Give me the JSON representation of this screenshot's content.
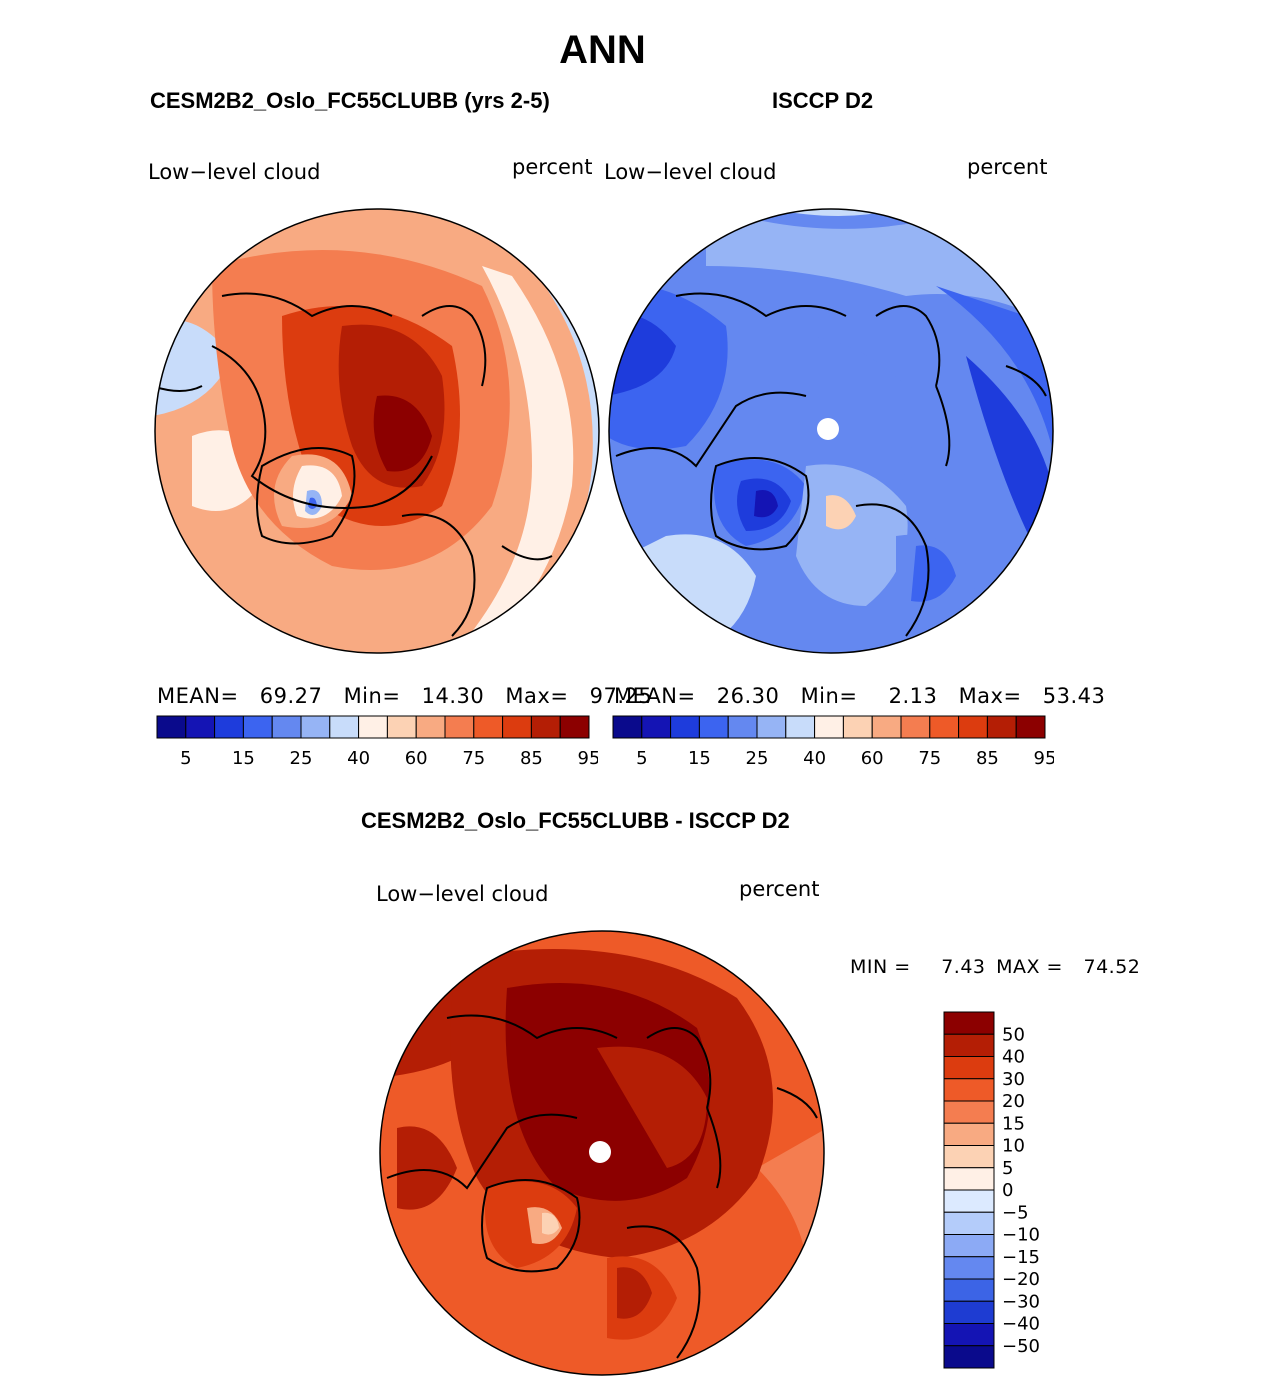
{
  "title": "ANN",
  "panel1": {
    "case_title": "CESM2B2_Oslo_FC55CLUBB (yrs 2-5)",
    "left_label": "Low−level cloud",
    "units": "percent",
    "stats": {
      "mean_label": "MEAN=",
      "mean": "69.27",
      "min_label": "Min=",
      "min": "14.30",
      "max_label": "Max=",
      "max": "97.25"
    },
    "colorbar_labels": [
      "5",
      "15",
      "25",
      "40",
      "60",
      "75",
      "85",
      "95"
    ]
  },
  "panel2": {
    "case_title": "ISCCP D2",
    "left_label": "Low−level cloud",
    "units": "percent",
    "stats": {
      "mean_label": "MEAN=",
      "mean": "26.30",
      "min_label": "Min=",
      "min": "2.13",
      "max_label": "Max=",
      "max": "53.43"
    },
    "colorbar_labels": [
      "5",
      "15",
      "25",
      "40",
      "60",
      "75",
      "85",
      "95"
    ]
  },
  "panel3": {
    "case_title": "CESM2B2_Oslo_FC55CLUBB - ISCCP D2",
    "left_label": "Low−level cloud",
    "units": "percent",
    "stats": {
      "min_label": "MIN =",
      "min": "7.43",
      "max_label": "MAX =",
      "max": "74.52"
    },
    "colorbar_labels": [
      "50",
      "40",
      "30",
      "20",
      "15",
      "10",
      "5",
      "0",
      "−5",
      "−10",
      "−15",
      "−20",
      "−30",
      "−40",
      "−50"
    ]
  },
  "colors": {
    "abs_scale": [
      "#0a0a8c",
      "#1414b4",
      "#1e3cdc",
      "#3c64f0",
      "#6488f0",
      "#96b4f5",
      "#c8dcfa",
      "#fff0e6",
      "#fcd2b4",
      "#f8aa82",
      "#f47d50",
      "#ee5a28",
      "#dc3c0f",
      "#b41e05",
      "#8c0000"
    ],
    "diff_scale": [
      "#8c0000",
      "#b41e05",
      "#dc3c0f",
      "#ee5a28",
      "#f47d50",
      "#f8aa82",
      "#fcd2b4",
      "#fff0e6",
      "#dceaff",
      "#b4ccfa",
      "#8caaf5",
      "#6488f0",
      "#3c64e6",
      "#1e3cd2",
      "#1414b4",
      "#0a0a8c"
    ]
  }
}
